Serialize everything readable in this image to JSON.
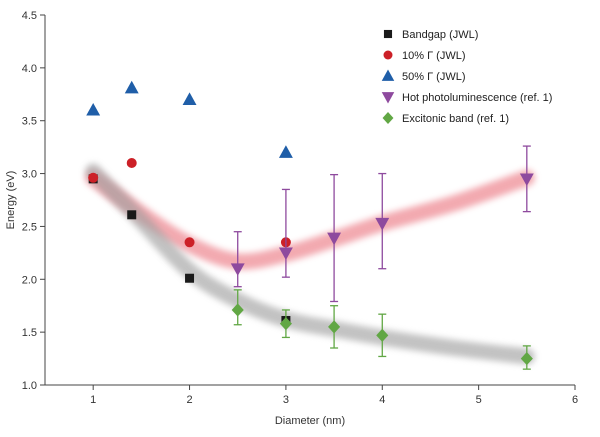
{
  "chart_data": {
    "type": "scatter",
    "title": "",
    "xlabel": "Diameter (nm)",
    "ylabel": "Energy (eV)",
    "xlim": [
      0.5,
      6
    ],
    "ylim": [
      1.0,
      4.5
    ],
    "xticks": [
      1,
      2,
      3,
      4,
      5,
      6
    ],
    "yticks": [
      1.0,
      1.5,
      2.0,
      2.5,
      3.0,
      3.5,
      4.0,
      4.5
    ],
    "grid": false,
    "legend_position": "top-right",
    "series": [
      {
        "name": "Bandgap (JWL)",
        "marker": "square",
        "color": "#1a1a1a",
        "size": 9,
        "points": [
          [
            1,
            2.95
          ],
          [
            1.4,
            2.61
          ],
          [
            2,
            2.01
          ],
          [
            3,
            1.61
          ]
        ]
      },
      {
        "name": "10% Γ (JWL)",
        "marker": "circle",
        "color": "#cc2027",
        "size": 10,
        "points": [
          [
            1,
            2.96
          ],
          [
            1.4,
            3.1
          ],
          [
            2,
            2.35
          ],
          [
            3,
            2.35
          ]
        ]
      },
      {
        "name": "50% Γ (JWL)",
        "marker": "triangle-up",
        "color": "#1f5ea8",
        "size": 12,
        "points": [
          [
            1,
            3.6
          ],
          [
            1.4,
            3.81
          ],
          [
            2,
            3.7
          ],
          [
            3,
            3.2
          ]
        ]
      },
      {
        "name": "Hot photoluminescence (ref. 1)",
        "marker": "triangle-down",
        "color": "#8e4a9e",
        "size": 12,
        "points": [
          [
            2.5,
            2.1
          ],
          [
            3,
            2.25
          ],
          [
            3.5,
            2.39
          ],
          [
            4,
            2.53
          ],
          [
            5.5,
            2.95
          ]
        ],
        "errors": [
          [
            0.17,
            0.35
          ],
          [
            0.23,
            0.6
          ],
          [
            0.6,
            0.6
          ],
          [
            0.43,
            0.47
          ],
          [
            0.31,
            0.31
          ]
        ]
      },
      {
        "name": "Excitonic band (ref. 1)",
        "marker": "diamond",
        "color": "#61a744",
        "size": 11,
        "points": [
          [
            2.5,
            1.71
          ],
          [
            3,
            1.58
          ],
          [
            3.5,
            1.55
          ],
          [
            4,
            1.47
          ],
          [
            5.5,
            1.25
          ]
        ],
        "errors": [
          [
            0.14,
            0.19
          ],
          [
            0.13,
            0.13
          ],
          [
            0.2,
            0.2
          ],
          [
            0.2,
            0.2
          ],
          [
            0.1,
            0.12
          ]
        ]
      }
    ],
    "bands": [
      {
        "name": "hot-photoluminescence-trend",
        "color": "#e8636f",
        "opacity": 0.55,
        "width": 16,
        "points": [
          [
            1,
            2.96
          ],
          [
            1.5,
            2.62
          ],
          [
            2,
            2.33
          ],
          [
            2.5,
            2.17
          ],
          [
            3,
            2.24
          ],
          [
            3.5,
            2.38
          ],
          [
            4,
            2.53
          ],
          [
            4.75,
            2.72
          ],
          [
            5.5,
            2.96
          ]
        ]
      },
      {
        "name": "excitonic-band-trend",
        "color": "#9d9d9d",
        "opacity": 0.62,
        "width": 16,
        "points": [
          [
            1,
            3.02
          ],
          [
            1.45,
            2.6
          ],
          [
            2,
            2.08
          ],
          [
            2.5,
            1.8
          ],
          [
            3,
            1.62
          ],
          [
            3.5,
            1.53
          ],
          [
            4,
            1.45
          ],
          [
            4.75,
            1.35
          ],
          [
            5.5,
            1.27
          ]
        ]
      }
    ],
    "axis_color": "#444444",
    "label_color": "#333333"
  }
}
